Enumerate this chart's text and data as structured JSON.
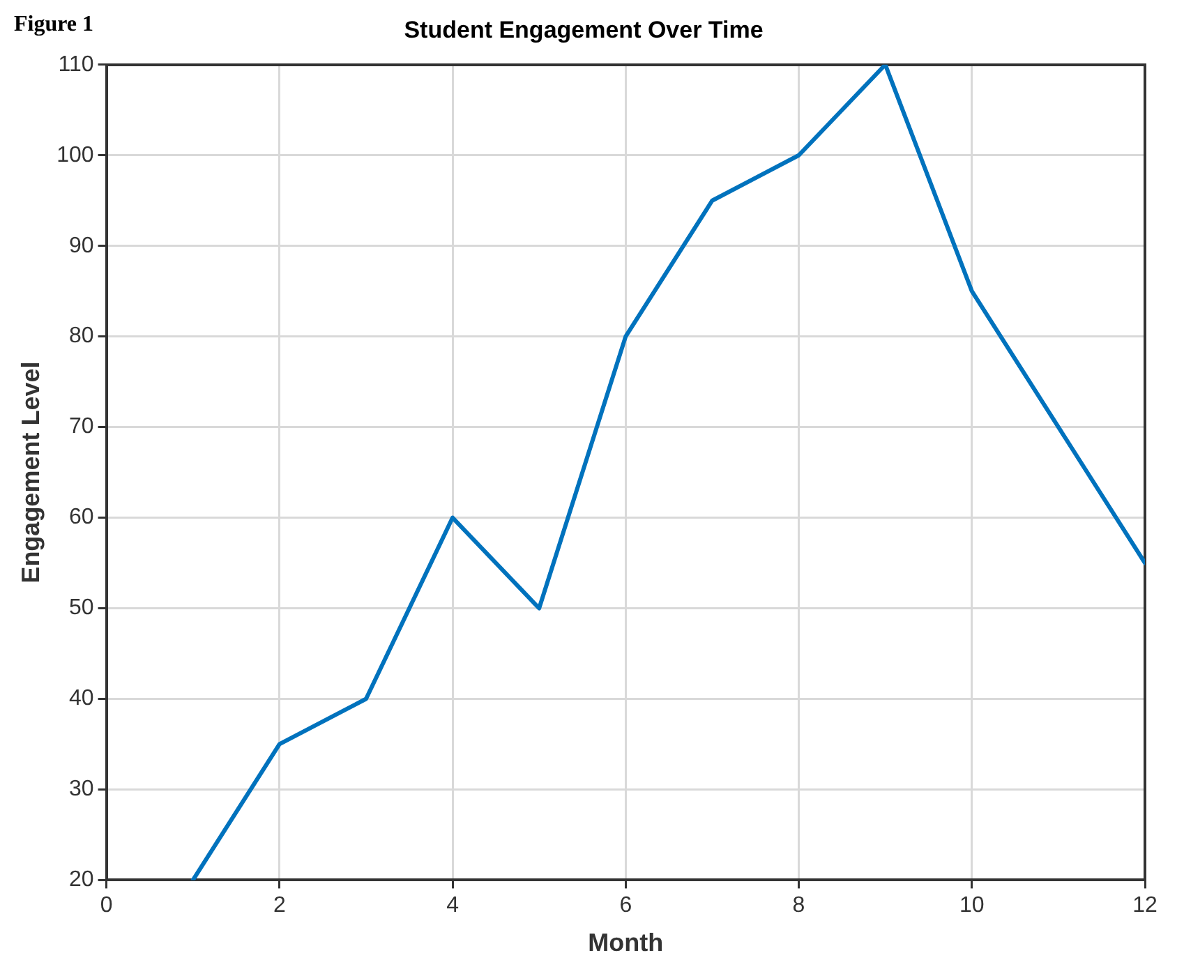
{
  "chart_data": {
    "type": "line",
    "title": "Student Engagement Over Time",
    "xlabel": "Month",
    "ylabel": "Engagement Level",
    "annotations": [
      "Figure 1"
    ],
    "x": [
      1,
      2,
      3,
      4,
      5,
      6,
      7,
      8,
      9,
      10,
      11,
      12
    ],
    "series": [
      {
        "color": "#0072bd",
        "values": [
          20,
          35,
          40,
          60,
          50,
          80,
          95,
          100,
          110,
          85,
          70,
          55
        ]
      }
    ],
    "xlim": [
      0,
      12
    ],
    "xticks": [
      0,
      2,
      4,
      6,
      8,
      10,
      12
    ],
    "ylim": [
      20,
      110
    ],
    "yticks": [
      20,
      30,
      40,
      50,
      60,
      70,
      80,
      90,
      100,
      110
    ],
    "grid": true,
    "legend": false,
    "marker": "none",
    "line_style": "solid"
  }
}
